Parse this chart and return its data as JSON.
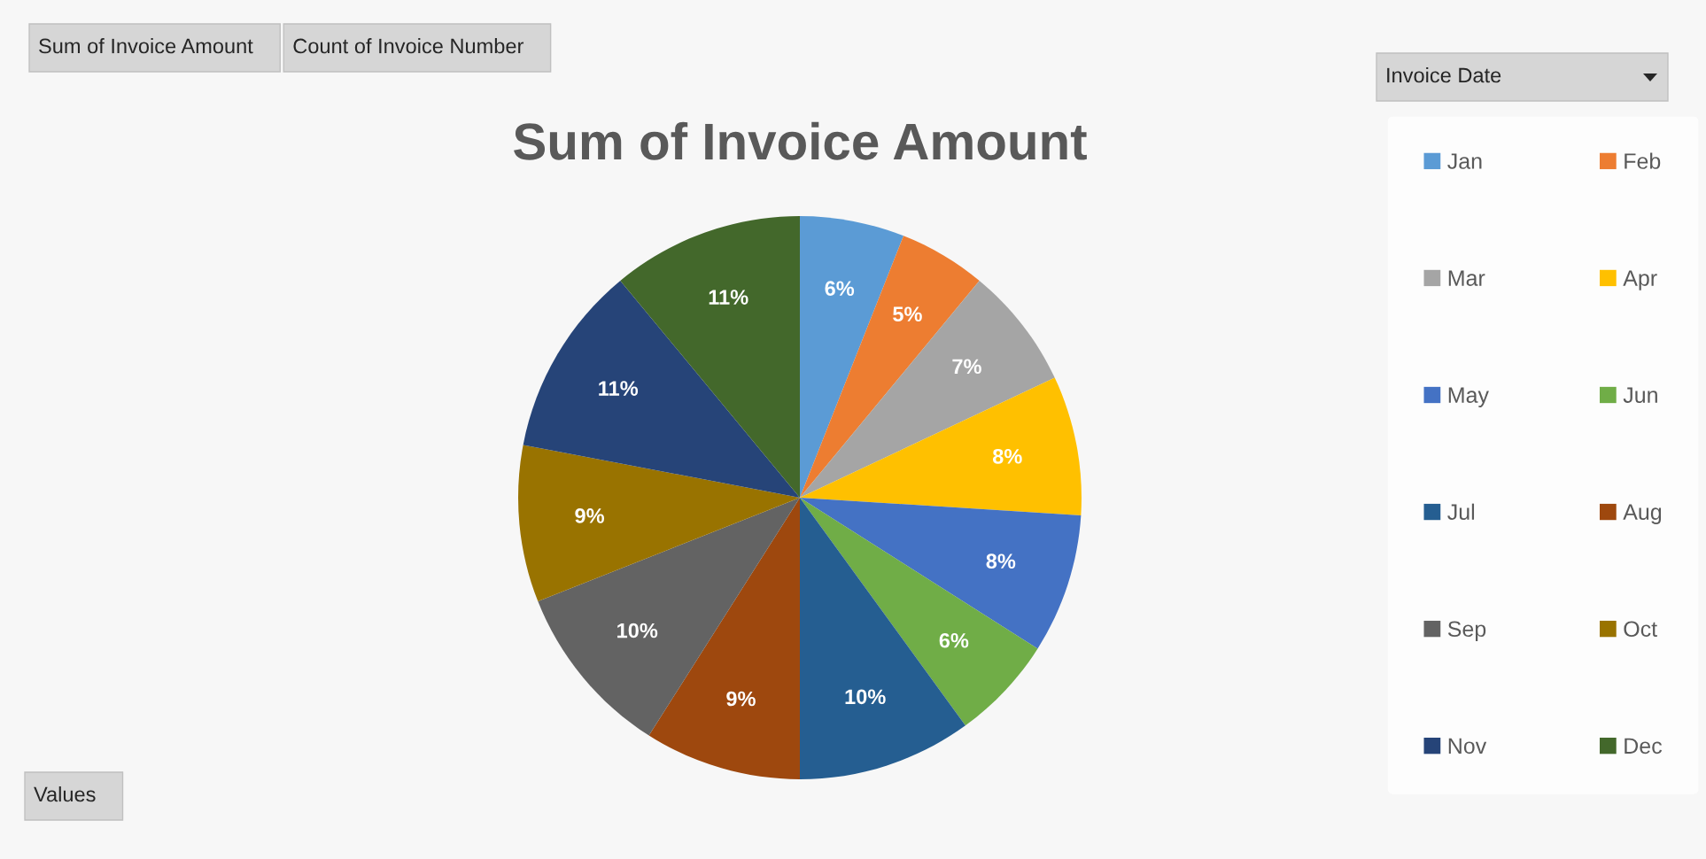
{
  "chart_data": {
    "type": "pie",
    "title": "Sum of Invoice Amount",
    "legend_title": "Invoice Date",
    "annotations": [
      "Sum of Invoice Amount",
      "Count of Invoice Number",
      "Values"
    ],
    "categories": [
      "Jan",
      "Feb",
      "Mar",
      "Apr",
      "May",
      "Jun",
      "Jul",
      "Aug",
      "Sep",
      "Oct",
      "Nov",
      "Dec"
    ],
    "values": [
      6,
      5,
      7,
      8,
      8,
      6,
      10,
      9,
      10,
      9,
      11,
      11
    ],
    "colors": [
      "#5b9bd5",
      "#ed7d31",
      "#a5a5a5",
      "#ffc000",
      "#4472c4",
      "#70ad47",
      "#255e91",
      "#9e480e",
      "#636363",
      "#997300",
      "#264478",
      "#43682b"
    ],
    "value_labels": [
      "6%",
      "5%",
      "7%",
      "8%",
      "8%",
      "6%",
      "10%",
      "9%",
      "10%",
      "9%",
      "11%",
      "11%"
    ],
    "legend": "right"
  }
}
